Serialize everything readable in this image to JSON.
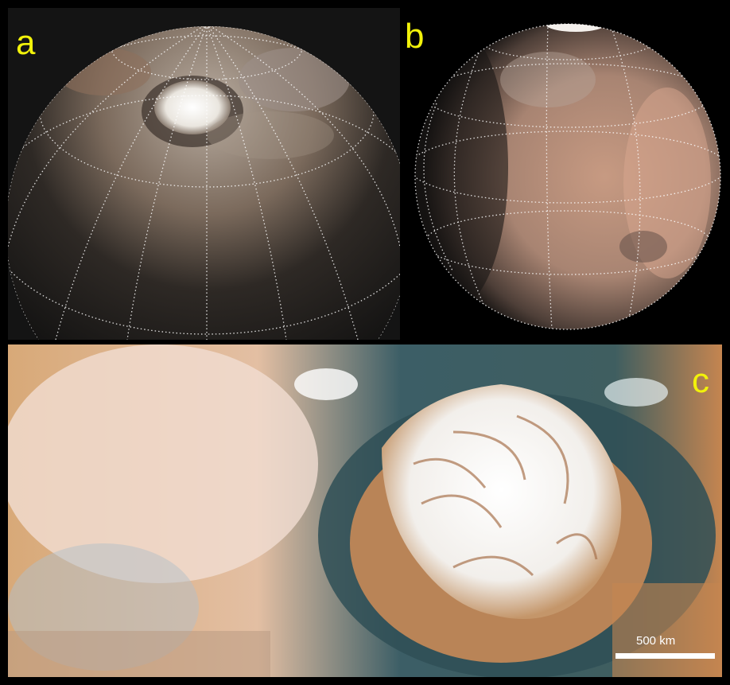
{
  "panels": [
    {
      "label": "a",
      "kind": "globe-north-pole-view"
    },
    {
      "label": "b",
      "kind": "globe-side-view"
    },
    {
      "label": "c",
      "kind": "polar-ice-cap-mosaic"
    }
  ],
  "scale_bar": {
    "label": "500 km"
  },
  "colors": {
    "panel_label": "#f2f20a",
    "frame": "#000000",
    "grid_lines": "#ffffff"
  }
}
